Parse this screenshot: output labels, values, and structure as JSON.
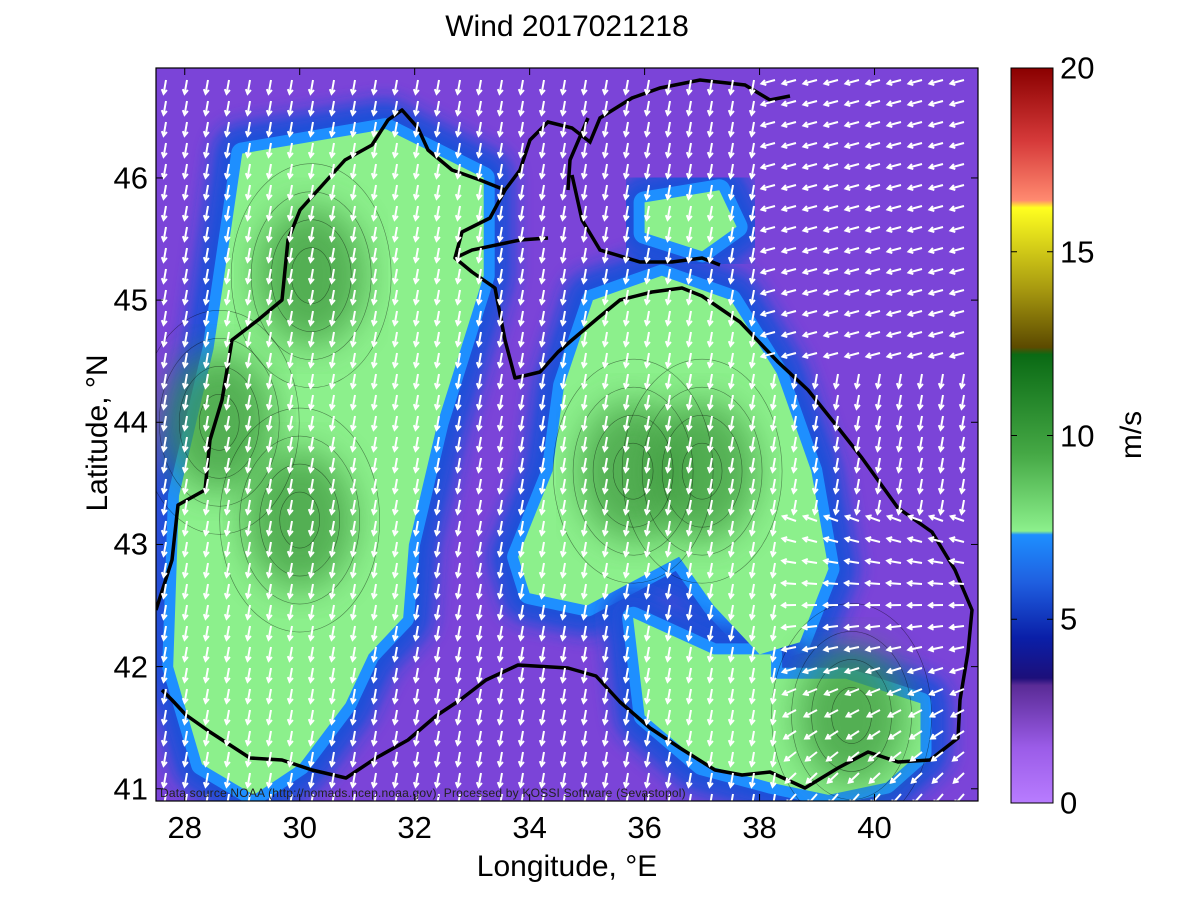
{
  "title": "Wind 2017021218",
  "x_axis": {
    "label": "Longitude, °E",
    "range": [
      27.5,
      41.8
    ],
    "ticks": [
      {
        "value": 28,
        "label": "28"
      },
      {
        "value": 30,
        "label": "30"
      },
      {
        "value": 32,
        "label": "32"
      },
      {
        "value": 34,
        "label": "34"
      },
      {
        "value": 36,
        "label": "36"
      },
      {
        "value": 38,
        "label": "38"
      },
      {
        "value": 40,
        "label": "40"
      }
    ]
  },
  "y_axis": {
    "label": "Latitude, °N",
    "range": [
      40.9,
      46.9
    ],
    "ticks": [
      {
        "value": 41,
        "label": "41"
      },
      {
        "value": 42,
        "label": "42"
      },
      {
        "value": 43,
        "label": "43"
      },
      {
        "value": 44,
        "label": "44"
      },
      {
        "value": 45,
        "label": "45"
      },
      {
        "value": 46,
        "label": "46"
      }
    ]
  },
  "colorbar": {
    "label": "m/s",
    "range": [
      0,
      20
    ],
    "ticks": [
      {
        "value": 0,
        "label": "0"
      },
      {
        "value": 5,
        "label": "5"
      },
      {
        "value": 10,
        "label": "10"
      },
      {
        "value": 15,
        "label": "15"
      },
      {
        "value": 20,
        "label": "20"
      }
    ],
    "stops": [
      {
        "value": 0,
        "color": "#b87cff"
      },
      {
        "value": 1.5,
        "color": "#9b5ce8"
      },
      {
        "value": 3.2,
        "color": "#5a2b96"
      },
      {
        "value": 3.4,
        "color": "#1c0f7a"
      },
      {
        "value": 4.5,
        "color": "#0a1fa8"
      },
      {
        "value": 6,
        "color": "#1f5fe0"
      },
      {
        "value": 7.3,
        "color": "#1e8fff"
      },
      {
        "value": 7.4,
        "color": "#8cf08c"
      },
      {
        "value": 9.5,
        "color": "#45a845"
      },
      {
        "value": 12.2,
        "color": "#0a6a14"
      },
      {
        "value": 12.4,
        "color": "#5c4a00"
      },
      {
        "value": 14,
        "color": "#a89a10"
      },
      {
        "value": 16.2,
        "color": "#ffff20"
      },
      {
        "value": 16.4,
        "color": "#ff8a70"
      },
      {
        "value": 18,
        "color": "#d63a3a"
      },
      {
        "value": 20,
        "color": "#8a0000"
      }
    ]
  },
  "credit": "Data source NOAA (http://nomads.ncep.noaa.gov). Processed by KOSSI Software (Sevastopol)",
  "wind_regions": [
    {
      "name": "western-jet",
      "polygon": [
        [
          29.0,
          46.2
        ],
        [
          31.5,
          46.4
        ],
        [
          33.2,
          46.0
        ],
        [
          33.2,
          45.2
        ],
        [
          32.4,
          44.0
        ],
        [
          31.9,
          43.0
        ],
        [
          31.8,
          42.4
        ],
        [
          31.2,
          42.1
        ],
        [
          30.8,
          41.7
        ],
        [
          30.0,
          41.2
        ],
        [
          29.2,
          40.95
        ],
        [
          28.3,
          41.2
        ],
        [
          27.8,
          42.0
        ],
        [
          27.9,
          43.4
        ],
        [
          28.5,
          44.6
        ]
      ]
    },
    {
      "name": "central-jet",
      "polygon": [
        [
          35.1,
          45.0
        ],
        [
          36.3,
          45.2
        ],
        [
          37.5,
          45.0
        ],
        [
          38.3,
          44.4
        ],
        [
          38.9,
          43.6
        ],
        [
          39.2,
          42.8
        ],
        [
          38.7,
          42.2
        ],
        [
          38.0,
          42.1
        ],
        [
          37.2,
          42.5
        ],
        [
          36.6,
          42.9
        ],
        [
          35.8,
          42.7
        ],
        [
          35.0,
          42.5
        ],
        [
          34.0,
          42.6
        ],
        [
          33.8,
          42.9
        ],
        [
          34.4,
          43.6
        ],
        [
          34.6,
          44.3
        ]
      ]
    },
    {
      "name": "south-lobe",
      "polygon": [
        [
          35.8,
          42.4
        ],
        [
          37.2,
          42.1
        ],
        [
          38.2,
          42.1
        ],
        [
          38.2,
          41.9
        ],
        [
          39.5,
          41.9
        ],
        [
          40.8,
          41.7
        ],
        [
          40.8,
          41.3
        ],
        [
          40.2,
          41.05
        ],
        [
          39.2,
          40.95
        ],
        [
          38.2,
          41.05
        ],
        [
          37.0,
          41.2
        ],
        [
          36.0,
          41.6
        ]
      ]
    },
    {
      "name": "azov-patch",
      "polygon": [
        [
          36.0,
          45.8
        ],
        [
          37.3,
          45.9
        ],
        [
          37.6,
          45.6
        ],
        [
          37.0,
          45.4
        ],
        [
          36.0,
          45.55
        ]
      ]
    }
  ],
  "wind_center": [
    [
      28.6,
      44.0
    ],
    [
      30.0,
      43.2
    ],
    [
      35.8,
      43.6
    ],
    [
      37.0,
      43.6
    ],
    [
      39.6,
      41.6
    ],
    [
      30.2,
      45.2
    ]
  ]
}
